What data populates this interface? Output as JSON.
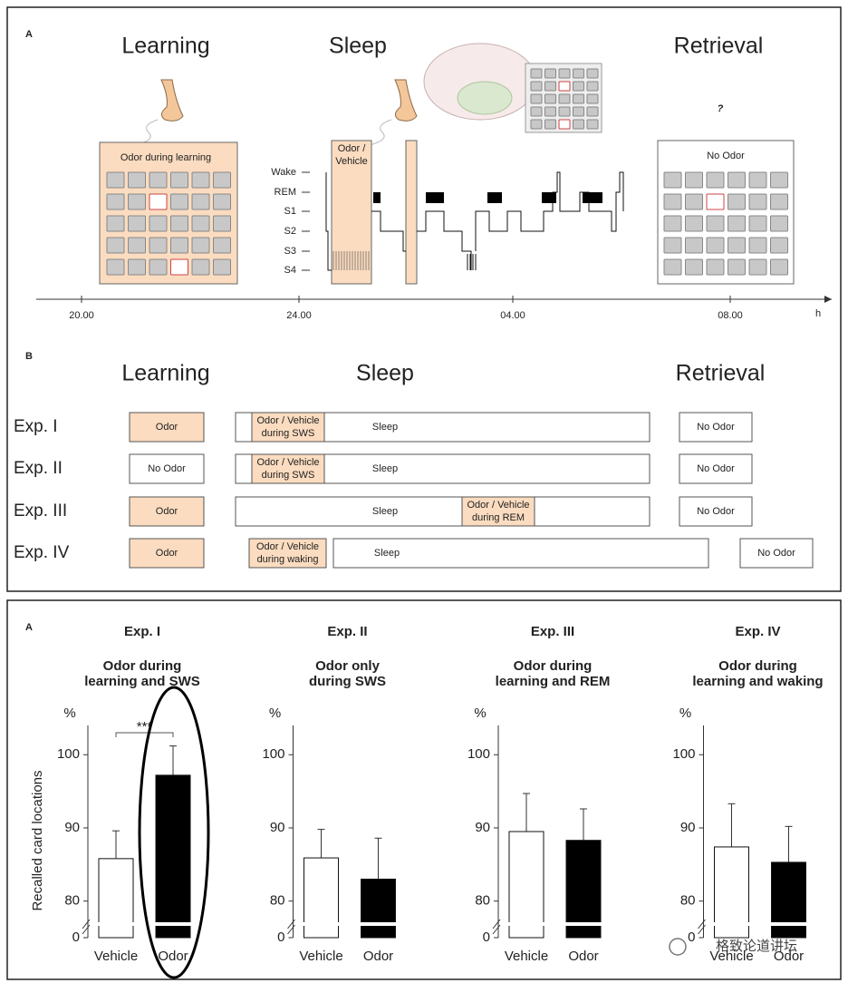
{
  "panel_a": {
    "label": "A",
    "phases": [
      "Learning",
      "Sleep",
      "Retrieval"
    ],
    "learning_box": "Odor during learning",
    "sleep_box": [
      "Odor /",
      "Vehicle"
    ],
    "retrieval_box": "No Odor",
    "question": "?",
    "stages": [
      "Wake",
      "REM",
      "S1",
      "S2",
      "S3",
      "S4"
    ],
    "time_ticks": [
      "20.00",
      "24.00",
      "04.00",
      "08.00"
    ],
    "time_unit": "h"
  },
  "panel_b": {
    "label": "B",
    "phases": [
      "Learning",
      "Sleep",
      "Retrieval"
    ],
    "experiments": [
      {
        "name": "Exp. I",
        "learning": "Odor",
        "stim": [
          "Odor / Vehicle",
          "during SWS"
        ],
        "sleep": "Sleep",
        "retrieval": "No Odor"
      },
      {
        "name": "Exp. II",
        "learning": "No Odor",
        "stim": [
          "Odor / Vehicle",
          "during SWS"
        ],
        "sleep": "Sleep",
        "retrieval": "No Odor"
      },
      {
        "name": "Exp. III",
        "learning": "Odor",
        "stim": [
          "Odor / Vehicle",
          "during REM"
        ],
        "sleep": "Sleep",
        "retrieval": "No Odor"
      },
      {
        "name": "Exp. IV",
        "learning": "Odor",
        "stim": [
          "Odor / Vehicle",
          "during waking"
        ],
        "sleep": "Sleep",
        "retrieval": "No Odor"
      }
    ]
  },
  "panel_c_label": "A",
  "watermark": "格致论道讲坛",
  "chart_data": [
    {
      "type": "bar",
      "title": "Exp. I",
      "subtitle": [
        "Odor during",
        "learning and SWS"
      ],
      "ylabel": "Recalled card locations",
      "y_unit": "%",
      "annotation": "***",
      "categories": [
        "Vehicle",
        "Odor"
      ],
      "values": [
        85.8,
        97.2
      ],
      "errors": [
        3.8,
        4.0
      ],
      "colors": [
        "#ffffff",
        "#000000"
      ],
      "ylim": [
        0,
        104
      ],
      "yticks": [
        0,
        80,
        90,
        100
      ],
      "broken_axis": true
    },
    {
      "type": "bar",
      "title": "Exp. II",
      "subtitle": [
        "Odor only",
        "during SWS"
      ],
      "y_unit": "%",
      "categories": [
        "Vehicle",
        "Odor"
      ],
      "values": [
        85.9,
        83.0
      ],
      "errors": [
        3.9,
        5.6
      ],
      "colors": [
        "#ffffff",
        "#000000"
      ],
      "ylim": [
        0,
        104
      ],
      "yticks": [
        0,
        80,
        90,
        100
      ],
      "broken_axis": true
    },
    {
      "type": "bar",
      "title": "Exp. III",
      "subtitle": [
        "Odor during",
        "learning and REM"
      ],
      "y_unit": "%",
      "categories": [
        "Vehicle",
        "Odor"
      ],
      "values": [
        89.5,
        88.3
      ],
      "errors": [
        5.2,
        4.3
      ],
      "colors": [
        "#ffffff",
        "#000000"
      ],
      "ylim": [
        0,
        104
      ],
      "yticks": [
        0,
        80,
        90,
        100
      ],
      "broken_axis": true
    },
    {
      "type": "bar",
      "title": "Exp. IV",
      "subtitle": [
        "Odor during",
        "learning and waking"
      ],
      "y_unit": "%",
      "categories": [
        "Vehicle",
        "Odor"
      ],
      "values": [
        87.4,
        85.3
      ],
      "errors": [
        5.9,
        4.9
      ],
      "colors": [
        "#ffffff",
        "#000000"
      ],
      "ylim": [
        0,
        104
      ],
      "yticks": [
        0,
        80,
        90,
        100
      ],
      "broken_axis": true
    }
  ]
}
